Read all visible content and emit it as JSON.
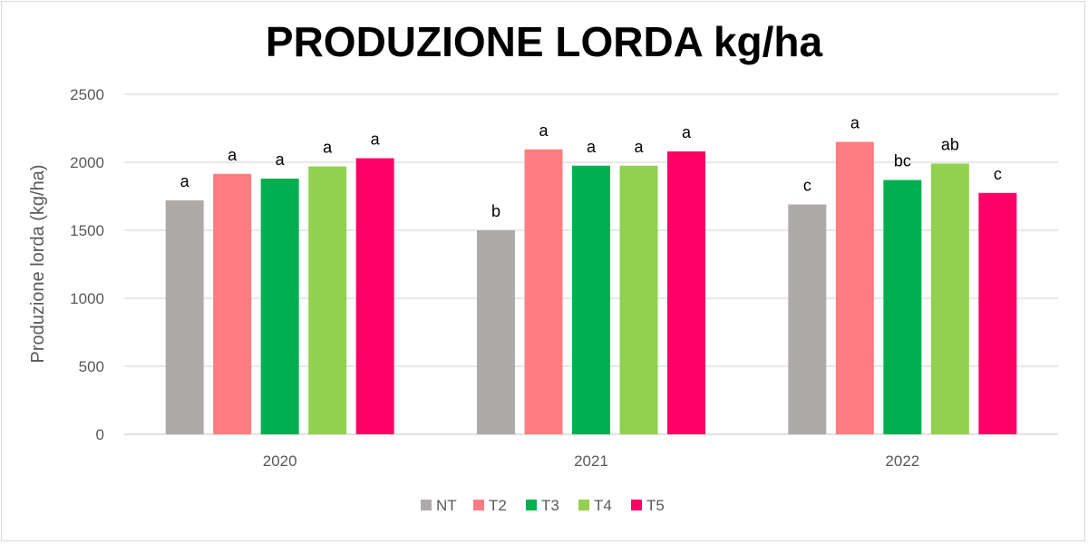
{
  "chart_data": {
    "type": "bar",
    "title": "PRODUZIONE LORDA kg/ha",
    "xlabel": "",
    "ylabel": "Produzione lorda (kg/ha)",
    "ylim": [
      0,
      2500
    ],
    "yticks": [
      0,
      500,
      1000,
      1500,
      2000,
      2500
    ],
    "grid": true,
    "legend_position": "bottom",
    "categories": [
      "2020",
      "2021",
      "2022"
    ],
    "series": [
      {
        "name": "NT",
        "color": "#aeaaaa",
        "values": [
          1720,
          1500,
          1690
        ],
        "labels": [
          "a",
          "b",
          "c"
        ]
      },
      {
        "name": "T2",
        "color": "#ff7c80",
        "values": [
          1915,
          2095,
          2150
        ],
        "labels": [
          "a",
          "a",
          "a"
        ]
      },
      {
        "name": "T3",
        "color": "#00b050",
        "values": [
          1880,
          1975,
          1870
        ],
        "labels": [
          "a",
          "a",
          "bc"
        ]
      },
      {
        "name": "T4",
        "color": "#92d050",
        "values": [
          1970,
          1975,
          1990
        ],
        "labels": [
          "a",
          "a",
          "ab"
        ]
      },
      {
        "name": "T5",
        "color": "#ff0066",
        "values": [
          2030,
          2080,
          1775
        ],
        "labels": [
          "a",
          "a",
          "c"
        ]
      }
    ]
  }
}
